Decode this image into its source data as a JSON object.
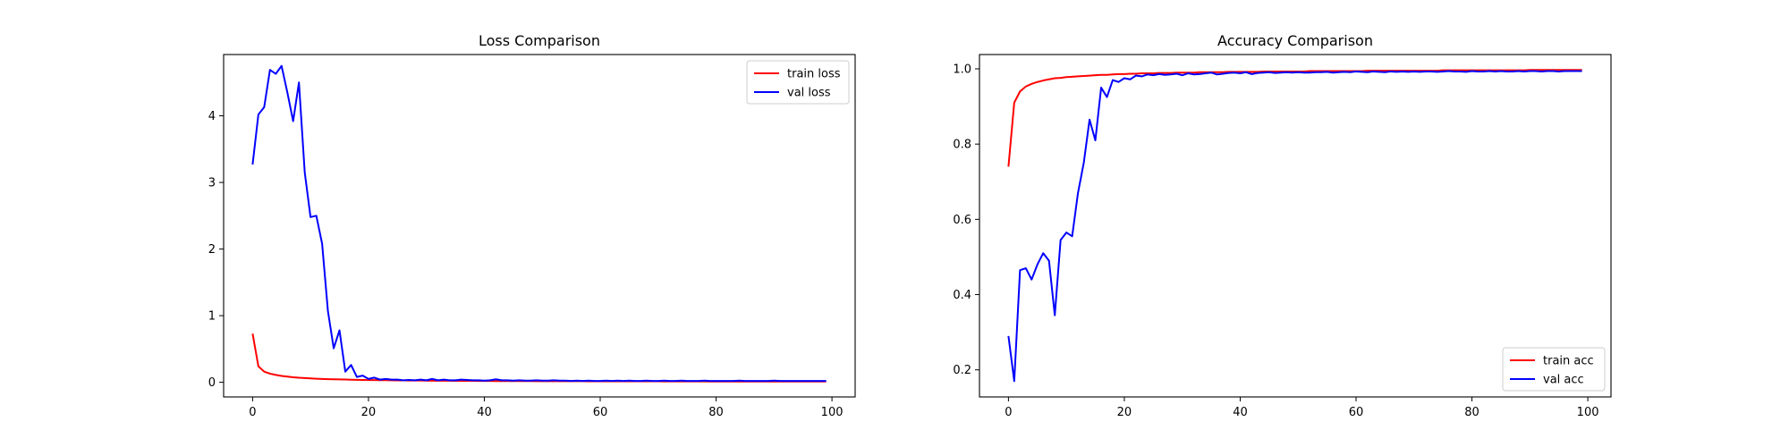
{
  "chart_data": [
    {
      "type": "line",
      "title": "Loss Comparison",
      "xlabel": "",
      "ylabel": "",
      "xlim": [
        -5,
        104
      ],
      "ylim": [
        -0.22,
        4.92
      ],
      "xticks": [
        0,
        20,
        40,
        60,
        80,
        100
      ],
      "yticks": [
        0,
        1,
        2,
        3,
        4
      ],
      "grid": false,
      "legend_position": "upper-right",
      "x": [
        0,
        1,
        2,
        3,
        4,
        5,
        6,
        7,
        8,
        9,
        10,
        11,
        12,
        13,
        14,
        15,
        16,
        17,
        18,
        19,
        20,
        21,
        22,
        23,
        24,
        25,
        26,
        27,
        28,
        29,
        30,
        31,
        32,
        33,
        34,
        35,
        36,
        37,
        38,
        39,
        40,
        41,
        42,
        43,
        44,
        45,
        46,
        47,
        48,
        49,
        50,
        51,
        52,
        53,
        54,
        55,
        56,
        57,
        58,
        59,
        60,
        61,
        62,
        63,
        64,
        65,
        66,
        67,
        68,
        69,
        70,
        71,
        72,
        73,
        74,
        75,
        76,
        77,
        78,
        79,
        80,
        81,
        82,
        83,
        84,
        85,
        86,
        87,
        88,
        89,
        90,
        91,
        92,
        93,
        94,
        95,
        96,
        97,
        98,
        99
      ],
      "series": [
        {
          "name": "train loss",
          "color": "#ff0000",
          "values": [
            0.73,
            0.24,
            0.16,
            0.13,
            0.11,
            0.095,
            0.085,
            0.075,
            0.068,
            0.063,
            0.058,
            0.054,
            0.05,
            0.047,
            0.045,
            0.043,
            0.041,
            0.039,
            0.037,
            0.035,
            0.034,
            0.033,
            0.032,
            0.031,
            0.03,
            0.029,
            0.028,
            0.027,
            0.026,
            0.026,
            0.025,
            0.024,
            0.024,
            0.023,
            0.023,
            0.022,
            0.022,
            0.021,
            0.021,
            0.02,
            0.02,
            0.02,
            0.019,
            0.019,
            0.019,
            0.018,
            0.018,
            0.018,
            0.018,
            0.017,
            0.017,
            0.017,
            0.017,
            0.016,
            0.016,
            0.016,
            0.016,
            0.016,
            0.015,
            0.015,
            0.015,
            0.015,
            0.015,
            0.015,
            0.014,
            0.014,
            0.014,
            0.014,
            0.014,
            0.014,
            0.014,
            0.013,
            0.013,
            0.013,
            0.013,
            0.013,
            0.013,
            0.013,
            0.013,
            0.012,
            0.012,
            0.012,
            0.012,
            0.012,
            0.012,
            0.012,
            0.012,
            0.012,
            0.012,
            0.011,
            0.011,
            0.011,
            0.011,
            0.011,
            0.011,
            0.011,
            0.011,
            0.011,
            0.011,
            0.011
          ]
        },
        {
          "name": "val loss",
          "color": "#0000ff",
          "values": [
            3.27,
            4.02,
            4.13,
            4.69,
            4.63,
            4.75,
            4.35,
            3.92,
            4.5,
            3.15,
            2.48,
            2.5,
            2.08,
            1.07,
            0.51,
            0.78,
            0.16,
            0.26,
            0.08,
            0.1,
            0.05,
            0.07,
            0.04,
            0.05,
            0.04,
            0.04,
            0.03,
            0.035,
            0.03,
            0.04,
            0.03,
            0.05,
            0.03,
            0.04,
            0.03,
            0.03,
            0.04,
            0.035,
            0.03,
            0.03,
            0.025,
            0.03,
            0.045,
            0.03,
            0.03,
            0.025,
            0.03,
            0.025,
            0.025,
            0.03,
            0.025,
            0.025,
            0.03,
            0.025,
            0.025,
            0.02,
            0.025,
            0.02,
            0.025,
            0.02,
            0.02,
            0.025,
            0.02,
            0.025,
            0.02,
            0.025,
            0.02,
            0.02,
            0.025,
            0.02,
            0.02,
            0.025,
            0.02,
            0.02,
            0.025,
            0.02,
            0.02,
            0.02,
            0.025,
            0.02,
            0.02,
            0.02,
            0.02,
            0.02,
            0.025,
            0.02,
            0.02,
            0.02,
            0.02,
            0.02,
            0.025,
            0.02,
            0.02,
            0.02,
            0.02,
            0.02,
            0.02,
            0.02,
            0.02,
            0.02
          ]
        }
      ]
    },
    {
      "type": "line",
      "title": "Accuracy Comparison",
      "xlabel": "",
      "ylabel": "",
      "xlim": [
        -5,
        104
      ],
      "ylim": [
        0.128,
        1.038
      ],
      "xticks": [
        0,
        20,
        40,
        60,
        80,
        100
      ],
      "yticks": [
        0.2,
        0.4,
        0.6,
        0.8,
        1.0
      ],
      "grid": false,
      "legend_position": "lower-right",
      "x": [
        0,
        1,
        2,
        3,
        4,
        5,
        6,
        7,
        8,
        9,
        10,
        11,
        12,
        13,
        14,
        15,
        16,
        17,
        18,
        19,
        20,
        21,
        22,
        23,
        24,
        25,
        26,
        27,
        28,
        29,
        30,
        31,
        32,
        33,
        34,
        35,
        36,
        37,
        38,
        39,
        40,
        41,
        42,
        43,
        44,
        45,
        46,
        47,
        48,
        49,
        50,
        51,
        52,
        53,
        54,
        55,
        56,
        57,
        58,
        59,
        60,
        61,
        62,
        63,
        64,
        65,
        66,
        67,
        68,
        69,
        70,
        71,
        72,
        73,
        74,
        75,
        76,
        77,
        78,
        79,
        80,
        81,
        82,
        83,
        84,
        85,
        86,
        87,
        88,
        89,
        90,
        91,
        92,
        93,
        94,
        95,
        96,
        97,
        98,
        99
      ],
      "series": [
        {
          "name": "train acc",
          "color": "#ff0000",
          "values": [
            0.74,
            0.91,
            0.94,
            0.953,
            0.96,
            0.965,
            0.969,
            0.972,
            0.975,
            0.976,
            0.978,
            0.979,
            0.98,
            0.981,
            0.982,
            0.983,
            0.984,
            0.984,
            0.985,
            0.986,
            0.986,
            0.987,
            0.987,
            0.988,
            0.988,
            0.988,
            0.989,
            0.989,
            0.989,
            0.99,
            0.99,
            0.99,
            0.99,
            0.991,
            0.991,
            0.991,
            0.991,
            0.991,
            0.992,
            0.992,
            0.992,
            0.992,
            0.992,
            0.992,
            0.993,
            0.993,
            0.993,
            0.993,
            0.993,
            0.993,
            0.993,
            0.993,
            0.994,
            0.994,
            0.994,
            0.994,
            0.994,
            0.994,
            0.994,
            0.994,
            0.994,
            0.994,
            0.995,
            0.995,
            0.995,
            0.995,
            0.995,
            0.995,
            0.995,
            0.995,
            0.995,
            0.995,
            0.995,
            0.995,
            0.995,
            0.996,
            0.996,
            0.996,
            0.996,
            0.996,
            0.996,
            0.996,
            0.996,
            0.996,
            0.996,
            0.996,
            0.996,
            0.996,
            0.996,
            0.996,
            0.997,
            0.997,
            0.997,
            0.997,
            0.997,
            0.997,
            0.997,
            0.997,
            0.997,
            0.997
          ]
        },
        {
          "name": "val acc",
          "color": "#0000ff",
          "values": [
            0.29,
            0.17,
            0.465,
            0.47,
            0.44,
            0.48,
            0.51,
            0.49,
            0.345,
            0.545,
            0.565,
            0.555,
            0.67,
            0.75,
            0.865,
            0.81,
            0.95,
            0.925,
            0.97,
            0.965,
            0.975,
            0.972,
            0.982,
            0.98,
            0.985,
            0.983,
            0.986,
            0.984,
            0.985,
            0.987,
            0.983,
            0.988,
            0.985,
            0.986,
            0.988,
            0.99,
            0.985,
            0.987,
            0.989,
            0.99,
            0.988,
            0.991,
            0.986,
            0.989,
            0.99,
            0.991,
            0.989,
            0.99,
            0.991,
            0.99,
            0.991,
            0.99,
            0.99,
            0.991,
            0.991,
            0.992,
            0.99,
            0.991,
            0.992,
            0.991,
            0.993,
            0.992,
            0.991,
            0.993,
            0.992,
            0.991,
            0.993,
            0.992,
            0.993,
            0.992,
            0.993,
            0.992,
            0.993,
            0.993,
            0.992,
            0.993,
            0.994,
            0.993,
            0.993,
            0.992,
            0.994,
            0.993,
            0.993,
            0.994,
            0.993,
            0.994,
            0.993,
            0.993,
            0.994,
            0.993,
            0.994,
            0.994,
            0.993,
            0.994,
            0.994,
            0.993,
            0.994,
            0.994,
            0.994,
            0.994
          ]
        }
      ]
    }
  ]
}
